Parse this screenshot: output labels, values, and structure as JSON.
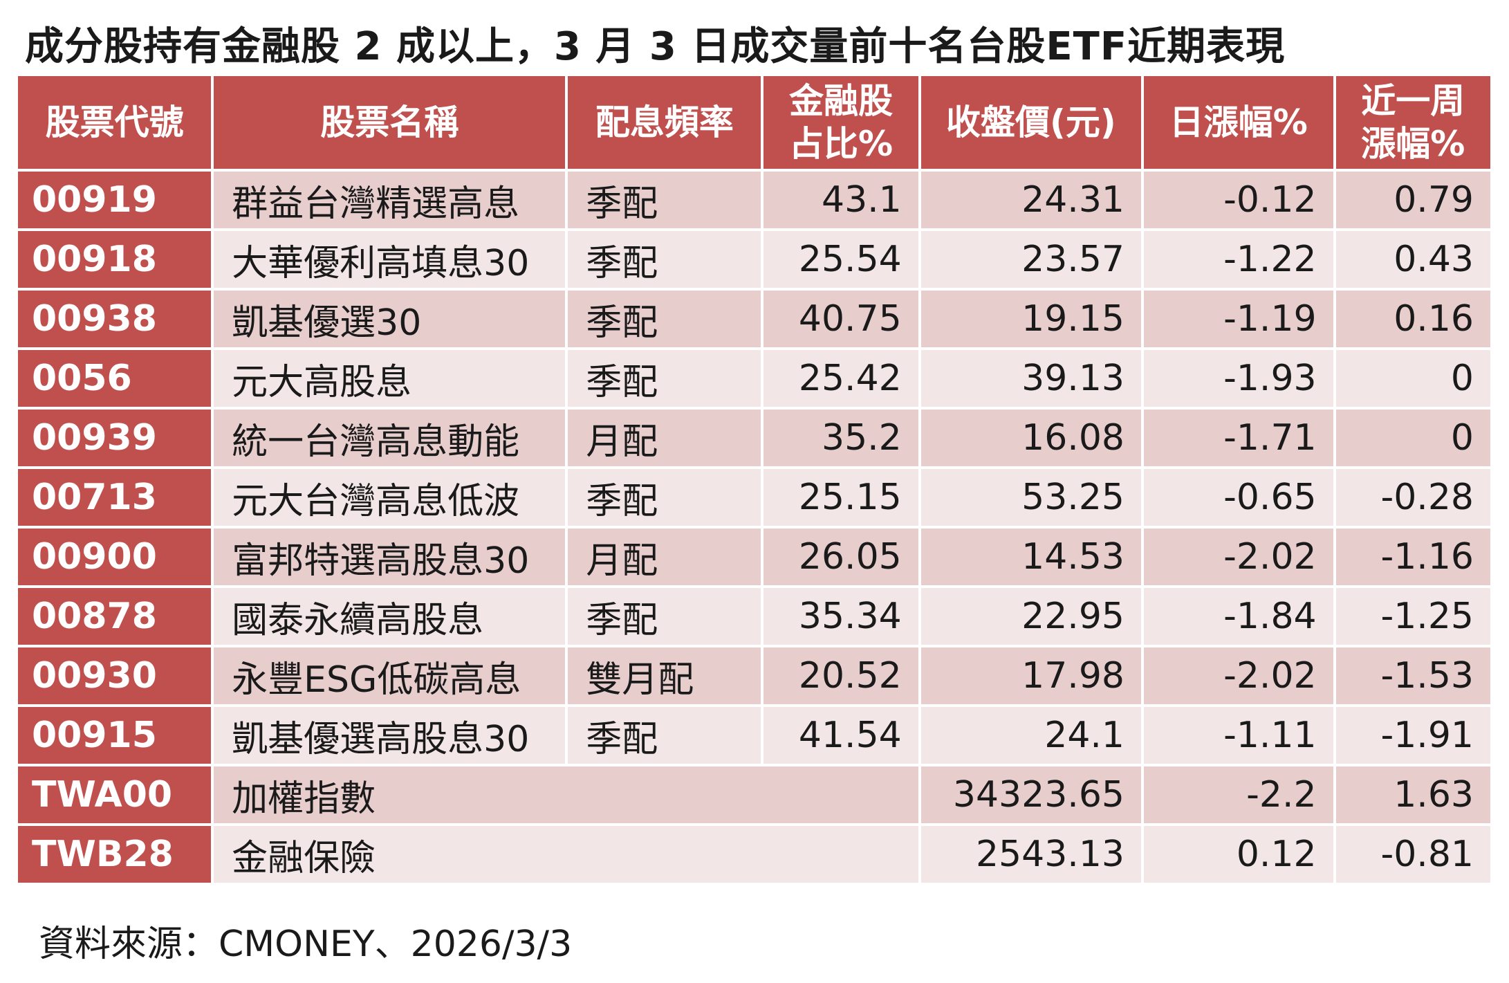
{
  "title": "成分股持有金融股 2 成以上，3 月 3 日成交量前十名台股ETF近期表現",
  "headers": {
    "code": "股票代號",
    "name": "股票名稱",
    "freq": "配息頻率",
    "fin_share_line1": "金融股",
    "fin_share_line2": "占比%",
    "close": "收盤價(元)",
    "day_change": "日漲幅%",
    "week_change_line1": "近一周",
    "week_change_line2": "漲幅%"
  },
  "rows": [
    {
      "code": "00919",
      "name": "群益台灣精選高息",
      "freq": "季配",
      "fin_share": "43.1",
      "close": "24.31",
      "day_change": "-0.12",
      "week_change": "0.79"
    },
    {
      "code": "00918",
      "name": "大華優利高填息30",
      "freq": "季配",
      "fin_share": "25.54",
      "close": "23.57",
      "day_change": "-1.22",
      "week_change": "0.43"
    },
    {
      "code": "00938",
      "name": "凱基優選30",
      "freq": "季配",
      "fin_share": "40.75",
      "close": "19.15",
      "day_change": "-1.19",
      "week_change": "0.16"
    },
    {
      "code": "0056",
      "name": "元大高股息",
      "freq": "季配",
      "fin_share": "25.42",
      "close": "39.13",
      "day_change": "-1.93",
      "week_change": "0"
    },
    {
      "code": "00939",
      "name": "統一台灣高息動能",
      "freq": "月配",
      "fin_share": "35.2",
      "close": "16.08",
      "day_change": "-1.71",
      "week_change": "0"
    },
    {
      "code": "00713",
      "name": "元大台灣高息低波",
      "freq": "季配",
      "fin_share": "25.15",
      "close": "53.25",
      "day_change": "-0.65",
      "week_change": "-0.28"
    },
    {
      "code": "00900",
      "name": "富邦特選高股息30",
      "freq": "月配",
      "fin_share": "26.05",
      "close": "14.53",
      "day_change": "-2.02",
      "week_change": "-1.16"
    },
    {
      "code": "00878",
      "name": "國泰永續高股息",
      "freq": "季配",
      "fin_share": "35.34",
      "close": "22.95",
      "day_change": "-1.84",
      "week_change": "-1.25"
    },
    {
      "code": "00930",
      "name": "永豐ESG低碳高息",
      "freq": "雙月配",
      "fin_share": "20.52",
      "close": "17.98",
      "day_change": "-2.02",
      "week_change": "-1.53"
    },
    {
      "code": "00915",
      "name": "凱基優選高股息30",
      "freq": "季配",
      "fin_share": "41.54",
      "close": "24.1",
      "day_change": "-1.11",
      "week_change": "-1.91"
    }
  ],
  "index_rows": [
    {
      "code": "TWA00",
      "name": "加權指數",
      "close": "34323.65",
      "day_change": "-2.2",
      "week_change": "1.63"
    },
    {
      "code": "TWB28",
      "name": "金融保險",
      "close": "2543.13",
      "day_change": "0.12",
      "week_change": "-0.81"
    }
  ],
  "source": "資料來源：CMONEY、2026/3/3",
  "colors": {
    "header_bg": "#c0504d",
    "row_dark": "#e8cdcd",
    "row_light": "#f3e6e6"
  }
}
